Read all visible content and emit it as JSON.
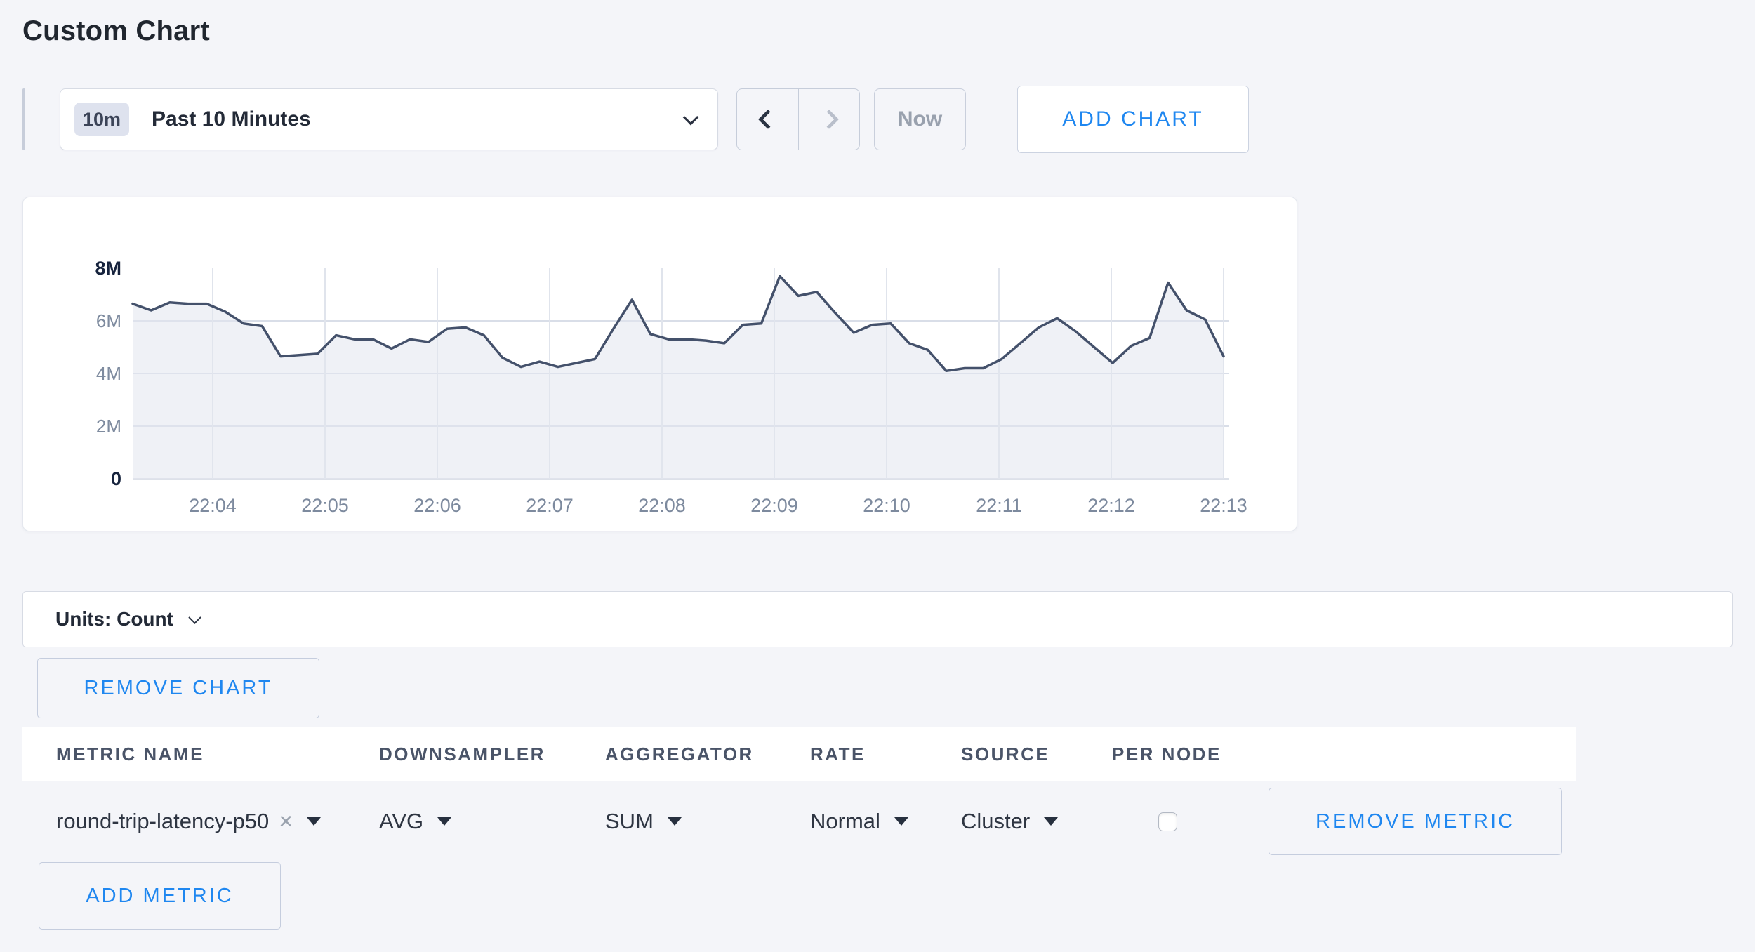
{
  "page": {
    "title": "Custom Chart"
  },
  "toolbar": {
    "timescale": {
      "badge": "10m",
      "label": "Past 10 Minutes"
    },
    "now_label": "Now",
    "add_chart_label": "ADD CHART"
  },
  "units_bar": {
    "label": "Units: Count"
  },
  "remove_chart_label": "REMOVE CHART",
  "metrics_table": {
    "headers": [
      "METRIC NAME",
      "DOWNSAMPLER",
      "AGGREGATOR",
      "RATE",
      "SOURCE",
      "PER NODE"
    ],
    "row": {
      "metric_name": "round-trip-latency-p50",
      "clear_glyph": "×",
      "downsampler": "AVG",
      "aggregator": "SUM",
      "rate": "Normal",
      "source": "Cluster",
      "per_node_checked": false,
      "remove_label": "REMOVE METRIC"
    },
    "add_metric_label": "ADD METRIC"
  },
  "colors": {
    "accent_blue": "#1f87f0",
    "line": "#44516b",
    "fill": "#e1e5ee",
    "grid_vertical": "#e0e4ec",
    "grid_horizontal": "#d9dee8",
    "baseline": "#dde1e9"
  },
  "chart_data": {
    "type": "area",
    "series": [
      {
        "name": "round-trip-latency-p50",
        "units": "Count",
        "x_start": "22:03:10",
        "x_interval_seconds": 10,
        "values_millions": [
          6.65,
          6.4,
          6.7,
          6.65,
          6.65,
          6.35,
          5.9,
          5.8,
          4.65,
          4.7,
          4.75,
          5.45,
          5.3,
          5.3,
          4.95,
          5.3,
          5.2,
          5.7,
          5.75,
          5.45,
          4.6,
          4.25,
          4.45,
          4.25,
          4.4,
          4.55,
          5.7,
          6.8,
          5.5,
          5.3,
          5.3,
          5.25,
          5.15,
          5.85,
          5.9,
          7.7,
          6.95,
          7.1,
          6.3,
          5.55,
          5.85,
          5.9,
          5.15,
          4.9,
          4.1,
          4.2,
          4.2,
          4.55,
          5.15,
          5.75,
          6.1,
          5.6,
          5.0,
          4.4,
          5.05,
          5.35,
          7.45,
          6.4,
          6.05,
          4.65
        ]
      }
    ],
    "title": "",
    "xlabel": "",
    "ylabel": "",
    "x_ticks": [
      "22:04",
      "22:05",
      "22:06",
      "22:07",
      "22:08",
      "22:09",
      "22:10",
      "22:11",
      "22:12",
      "22:13"
    ],
    "y_ticks": [
      "0",
      "2M",
      "4M",
      "6M",
      "8M"
    ],
    "ylim_millions": [
      0,
      8
    ],
    "grid": true,
    "legend": false
  }
}
